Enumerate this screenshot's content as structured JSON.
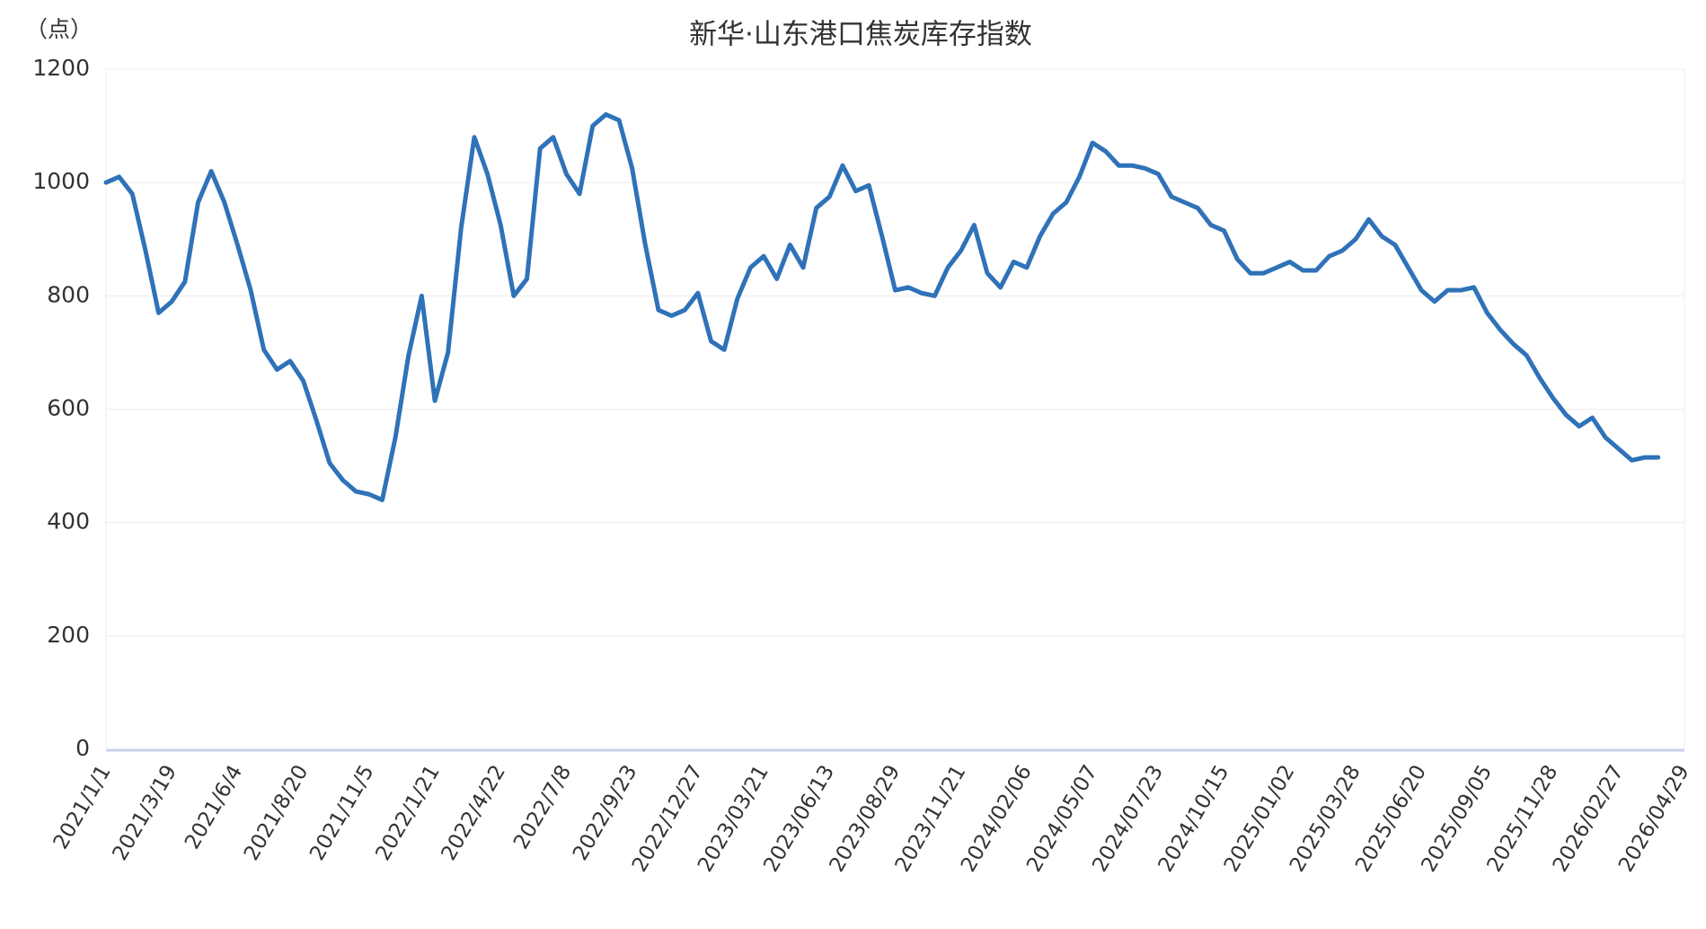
{
  "chart_data": {
    "type": "line",
    "title": "新华·山东港口焦炭库存指数",
    "y_label": "（点）",
    "categories": [
      "2021/1/1",
      null,
      null,
      null,
      null,
      "2021/3/19",
      null,
      null,
      null,
      null,
      "2021/6/4",
      null,
      null,
      null,
      null,
      "2021/8/20",
      null,
      null,
      null,
      null,
      "2021/11/5",
      null,
      null,
      null,
      null,
      "2022/1/21",
      null,
      null,
      null,
      null,
      "2022/4/22",
      null,
      null,
      null,
      null,
      "2022/7/8",
      null,
      null,
      null,
      null,
      "2022/9/23",
      null,
      null,
      null,
      null,
      "2022/12/27",
      null,
      null,
      null,
      null,
      "2023/03/21",
      null,
      null,
      null,
      null,
      "2023/06/13",
      null,
      null,
      null,
      null,
      "2023/08/29",
      null,
      null,
      null,
      null,
      "2023/11/21",
      null,
      null,
      null,
      null,
      "2024/02/06",
      null,
      null,
      null,
      null,
      "2024/05/07",
      null,
      null,
      null,
      null,
      "2024/07/23",
      null,
      null,
      null,
      null,
      "2024/10/15",
      null,
      null,
      null,
      null,
      "2025/01/02",
      null,
      null,
      null,
      null,
      "2025/03/28",
      null,
      null,
      null,
      null,
      "2025/06/20",
      null,
      null,
      null,
      null,
      "2025/09/05",
      null,
      null,
      null,
      null,
      "2025/11/28",
      null,
      null,
      null,
      null,
      "2026/02/27",
      null,
      null,
      null,
      null,
      "2026/04/29"
    ],
    "series": [
      {
        "name": "新华·山东港口焦炭库存指数",
        "color": "#2f72b8",
        "values": [
          1000,
          1010,
          980,
          880,
          770,
          790,
          825,
          965,
          1020,
          965,
          890,
          810,
          705,
          670,
          685,
          650,
          580,
          505,
          475,
          455,
          450,
          440,
          550,
          695,
          800,
          615,
          700,
          920,
          1080,
          1015,
          925,
          800,
          830,
          1060,
          1080,
          1015,
          980,
          1100,
          1120,
          1110,
          1025,
          890,
          775,
          765,
          775,
          805,
          720,
          705,
          795,
          850,
          870,
          830,
          890,
          850,
          955,
          975,
          1030,
          985,
          995,
          905,
          810,
          815,
          805,
          800,
          850,
          880,
          925,
          840,
          815,
          860,
          850,
          905,
          945,
          965,
          1010,
          1070,
          1055,
          1030,
          1030,
          1025,
          1015,
          975,
          965,
          955,
          925,
          915,
          865,
          840,
          840,
          850,
          860,
          845,
          845,
          870,
          880,
          900,
          935,
          905,
          890,
          850,
          810,
          790,
          810,
          810,
          815,
          770,
          740,
          715,
          695,
          655,
          620,
          590,
          570,
          585,
          550,
          530,
          510,
          515,
          515,
          null,
          null
        ]
      }
    ],
    "ylim": [
      0,
      1200
    ],
    "yticks": [
      0,
      200,
      400,
      600,
      800,
      1000,
      1200
    ],
    "grid": true
  }
}
